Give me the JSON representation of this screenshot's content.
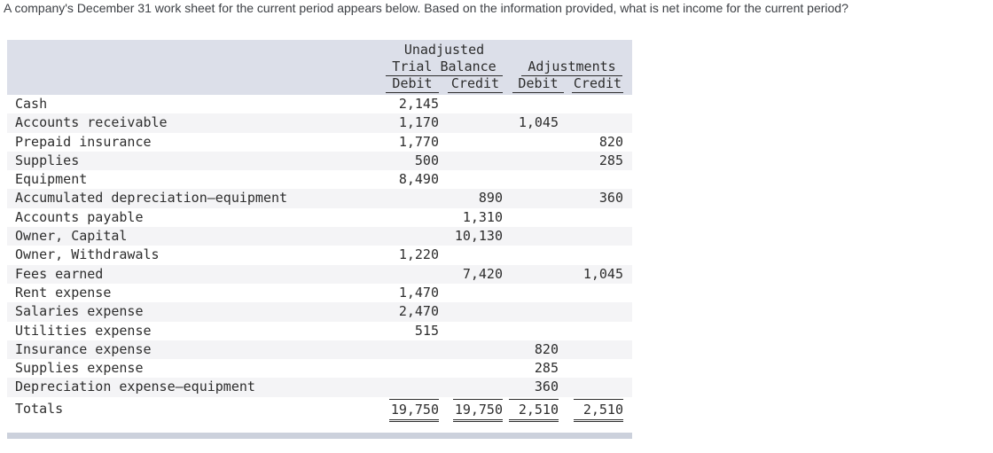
{
  "question": "A company's December 31 work sheet for the current period appears below. Based on the information provided, what is net income for the current period?",
  "worksheet": {
    "header": {
      "unadjusted": "Unadjusted",
      "trial_balance": "Trial Balance",
      "adjustments": "Adjustments",
      "debit": "Debit",
      "credit": "Credit"
    },
    "rows": [
      {
        "account": "Cash",
        "utb_debit": "2,145",
        "utb_credit": "",
        "adj_debit": "",
        "adj_credit": ""
      },
      {
        "account": "Accounts receivable",
        "utb_debit": "1,170",
        "utb_credit": "",
        "adj_debit": "1,045",
        "adj_credit": ""
      },
      {
        "account": "Prepaid insurance",
        "utb_debit": "1,770",
        "utb_credit": "",
        "adj_debit": "",
        "adj_credit": "820"
      },
      {
        "account": "Supplies",
        "utb_debit": "500",
        "utb_credit": "",
        "adj_debit": "",
        "adj_credit": "285"
      },
      {
        "account": "Equipment",
        "utb_debit": "8,490",
        "utb_credit": "",
        "adj_debit": "",
        "adj_credit": ""
      },
      {
        "account": "Accumulated depreciation—equipment",
        "utb_debit": "",
        "utb_credit": "890",
        "adj_debit": "",
        "adj_credit": "360"
      },
      {
        "account": "Accounts payable",
        "utb_debit": "",
        "utb_credit": "1,310",
        "adj_debit": "",
        "adj_credit": ""
      },
      {
        "account": "Owner, Capital",
        "utb_debit": "",
        "utb_credit": "10,130",
        "adj_debit": "",
        "adj_credit": ""
      },
      {
        "account": "Owner, Withdrawals",
        "utb_debit": "1,220",
        "utb_credit": "",
        "adj_debit": "",
        "adj_credit": ""
      },
      {
        "account": "Fees earned",
        "utb_debit": "",
        "utb_credit": "7,420",
        "adj_debit": "",
        "adj_credit": "1,045"
      },
      {
        "account": "Rent expense",
        "utb_debit": "1,470",
        "utb_credit": "",
        "adj_debit": "",
        "adj_credit": ""
      },
      {
        "account": "Salaries expense",
        "utb_debit": "2,470",
        "utb_credit": "",
        "adj_debit": "",
        "adj_credit": ""
      },
      {
        "account": "Utilities expense",
        "utb_debit": "515",
        "utb_credit": "",
        "adj_debit": "",
        "adj_credit": ""
      },
      {
        "account": "Insurance expense",
        "utb_debit": "",
        "utb_credit": "",
        "adj_debit": "820",
        "adj_credit": ""
      },
      {
        "account": "Supplies expense",
        "utb_debit": "",
        "utb_credit": "",
        "adj_debit": "285",
        "adj_credit": ""
      },
      {
        "account": "Depreciation expense—equipment",
        "utb_debit": "",
        "utb_credit": "",
        "adj_debit": "360",
        "adj_credit": ""
      }
    ],
    "totals": {
      "label": "Totals",
      "utb_debit": "19,750",
      "utb_credit": "19,750",
      "adj_debit": "2,510",
      "adj_credit": "2,510"
    }
  },
  "colors": {
    "header_band": "#dcdfe9",
    "row_stripe": "#f4f4f6",
    "bottom_bar": "#ccd1dc",
    "text": "#2d2d2d"
  }
}
